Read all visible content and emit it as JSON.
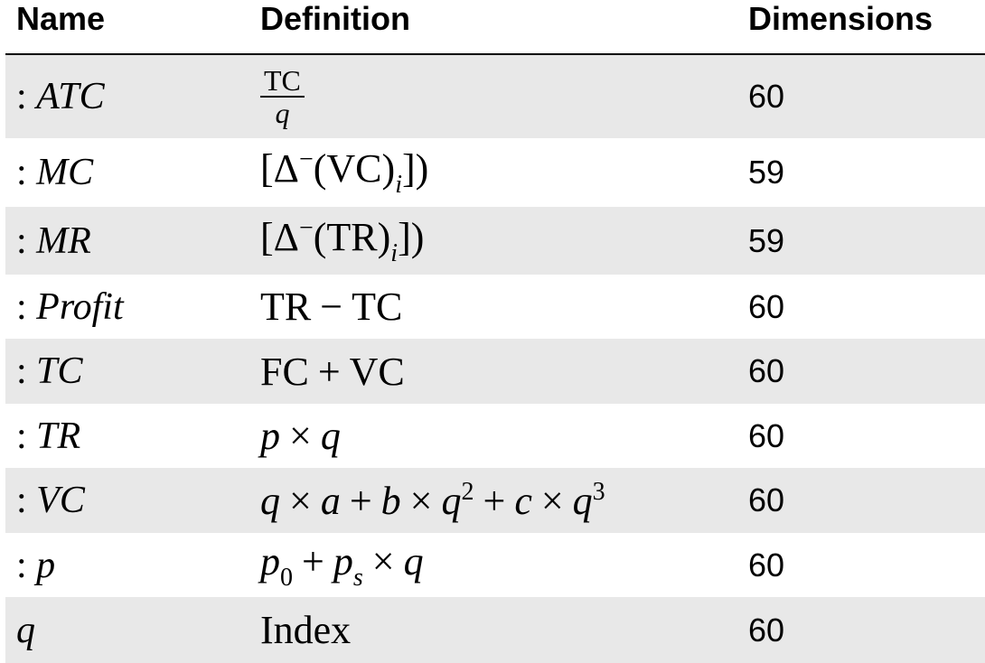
{
  "header": {
    "name": "Name",
    "definition": "Definition",
    "dimensions": "Dimensions"
  },
  "rows": [
    {
      "name": {
        "prefix": ":",
        "symbol": "ATC"
      },
      "definition": [
        {
          "frac": {
            "num": [
              {
                "r": "TC"
              }
            ],
            "den": [
              {
                "i": "q"
              }
            ]
          }
        }
      ],
      "dimensions": "60"
    },
    {
      "name": {
        "prefix": ":",
        "symbol": "MC"
      },
      "definition": [
        {
          "r": "[Δ"
        },
        {
          "sup": "−"
        },
        {
          "r": "(VC)"
        },
        {
          "subi": "i"
        },
        {
          "r": "])"
        }
      ],
      "dimensions": "59"
    },
    {
      "name": {
        "prefix": ":",
        "symbol": "MR"
      },
      "definition": [
        {
          "r": "[Δ"
        },
        {
          "sup": "−"
        },
        {
          "r": "(TR)"
        },
        {
          "subi": "i"
        },
        {
          "r": "])"
        }
      ],
      "dimensions": "59"
    },
    {
      "name": {
        "prefix": ":",
        "symbol": "Profit"
      },
      "definition": [
        {
          "r": "TR"
        },
        {
          "op": "−"
        },
        {
          "r": "TC"
        }
      ],
      "dimensions": "60"
    },
    {
      "name": {
        "prefix": ":",
        "symbol": "TC"
      },
      "definition": [
        {
          "r": "FC"
        },
        {
          "op": "+"
        },
        {
          "r": "VC"
        }
      ],
      "dimensions": "60"
    },
    {
      "name": {
        "prefix": ":",
        "symbol": "TR"
      },
      "definition": [
        {
          "i": "p"
        },
        {
          "op": "×"
        },
        {
          "i": "q"
        }
      ],
      "dimensions": "60"
    },
    {
      "name": {
        "prefix": ":",
        "symbol": "VC"
      },
      "definition": [
        {
          "i": "q"
        },
        {
          "op": "×"
        },
        {
          "i": "a"
        },
        {
          "op": "+"
        },
        {
          "i": "b"
        },
        {
          "op": "×"
        },
        {
          "i": "q"
        },
        {
          "sup": "2"
        },
        {
          "op": "+"
        },
        {
          "i": "c"
        },
        {
          "op": "×"
        },
        {
          "i": "q"
        },
        {
          "sup": "3"
        }
      ],
      "dimensions": "60"
    },
    {
      "name": {
        "prefix": ":",
        "symbol": "p"
      },
      "definition": [
        {
          "i": "p"
        },
        {
          "sub": "0"
        },
        {
          "op": "+"
        },
        {
          "i": "p"
        },
        {
          "subi": "s"
        },
        {
          "op": "×"
        },
        {
          "i": "q"
        }
      ],
      "dimensions": "60"
    },
    {
      "name": {
        "symbol": "q"
      },
      "definition": [
        {
          "r": "Index"
        }
      ],
      "dimensions": "60"
    }
  ]
}
